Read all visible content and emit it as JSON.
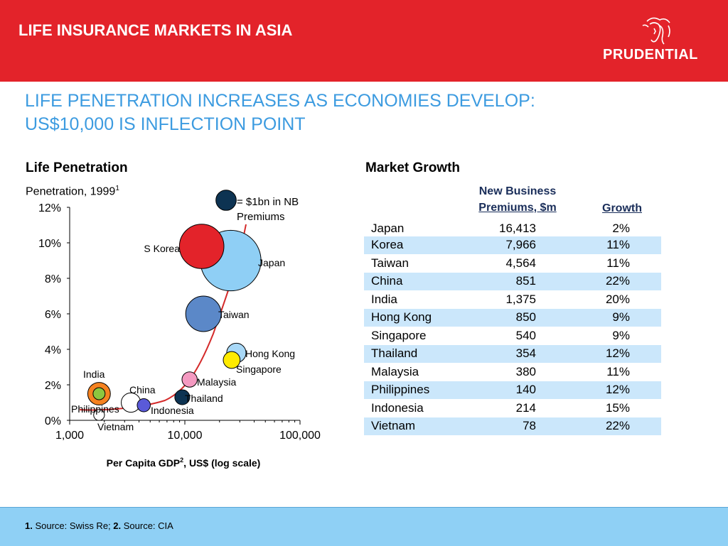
{
  "header": {
    "title": "LIFE INSURANCE MARKETS IN ASIA",
    "brand": "PRUDENTIAL",
    "brand_color": "#e3232a",
    "logo_icon": "prudence-head-icon"
  },
  "subtitle": {
    "line1": "LIFE PENETRATION INCREASES AS ECONOMIES DEVELOP:",
    "line2": "US$10,000 IS INFLECTION POINT"
  },
  "left_panel": {
    "title": "Life Penetration",
    "subtitle": "Penetration, 1999",
    "subtitle_sup": "1"
  },
  "right_panel": {
    "title": "Market Growth",
    "col_premiums_line1": "New Business",
    "col_premiums_line2": "Premiums, $m",
    "col_growth": "Growth"
  },
  "chart_data": {
    "type": "scatter",
    "subtype": "bubble",
    "x_scale": "log",
    "xlim": [
      1000,
      100000
    ],
    "ylim": [
      0,
      12
    ],
    "x_ticks": [
      "1,000",
      "10,000",
      "100,000"
    ],
    "y_ticks": [
      "0%",
      "2%",
      "4%",
      "6%",
      "8%",
      "10%",
      "12%"
    ],
    "xlabel_main": "Per Capita GDP",
    "xlabel_sup": "2",
    "xlabel_rest": ", US$ (log scale)",
    "legend": {
      "label_line1": "= $1bn in NB",
      "label_line2": "Premiums",
      "color": "#0d3352"
    },
    "trend_line_color": "#d42a2a",
    "points": [
      {
        "name": "Japan",
        "gdp": 25000,
        "penetration": 9.0,
        "size": 16.4,
        "color": "#8fcff5"
      },
      {
        "name": "S Korea",
        "gdp": 14000,
        "penetration": 9.8,
        "size": 8.0,
        "color": "#e3232a"
      },
      {
        "name": "Taiwan",
        "gdp": 14500,
        "penetration": 6.0,
        "size": 4.6,
        "color": "#5b88c8"
      },
      {
        "name": "Hong Kong",
        "gdp": 28000,
        "penetration": 3.8,
        "size": 0.85,
        "color": "#a8d8f7"
      },
      {
        "name": "Singapore",
        "gdp": 25500,
        "penetration": 3.4,
        "size": 0.54,
        "color": "#ffeb00"
      },
      {
        "name": "Malaysia",
        "gdp": 11000,
        "penetration": 2.3,
        "size": 0.38,
        "color": "#f49ac1"
      },
      {
        "name": "Thailand",
        "gdp": 9500,
        "penetration": 1.3,
        "size": 0.35,
        "color": "#0d3352"
      },
      {
        "name": "China",
        "gdp": 3400,
        "penetration": 1.0,
        "size": 0.85,
        "color": "#ffffff"
      },
      {
        "name": "Indonesia",
        "gdp": 4400,
        "penetration": 0.85,
        "size": 0.21,
        "color": "#5a5ad8"
      },
      {
        "name": "India",
        "gdp": 1800,
        "penetration": 1.5,
        "size": 1.38,
        "color": "#f58220"
      },
      {
        "name": "Philippines",
        "gdp": 1800,
        "penetration": 1.5,
        "size": 0.14,
        "color": "#8dc63f"
      },
      {
        "name": "Vietnam",
        "gdp": 1800,
        "penetration": 0.3,
        "size": 0.08,
        "color": "#ffffff"
      }
    ],
    "table": [
      {
        "country": "Japan",
        "premiums": "16,413",
        "growth": "2%"
      },
      {
        "country": "Korea",
        "premiums": "7,966",
        "growth": "11%"
      },
      {
        "country": "Taiwan",
        "premiums": "4,564",
        "growth": "11%"
      },
      {
        "country": "China",
        "premiums": "851",
        "growth": "22%"
      },
      {
        "country": "India",
        "premiums": "1,375",
        "growth": "20%"
      },
      {
        "country": "Hong Kong",
        "premiums": "850",
        "growth": "9%"
      },
      {
        "country": "Singapore",
        "premiums": "540",
        "growth": "9%"
      },
      {
        "country": "Thailand",
        "premiums": "354",
        "growth": "12%"
      },
      {
        "country": "Malaysia",
        "premiums": "380",
        "growth": "11%"
      },
      {
        "country": "Philippines",
        "premiums": "140",
        "growth": "12%"
      },
      {
        "country": "Indonesia",
        "premiums": "214",
        "growth": "15%"
      },
      {
        "country": "Vietnam",
        "premiums": "78",
        "growth": "22%"
      }
    ]
  },
  "footer": {
    "note1_num": "1.",
    "note1_text": " Source: Swiss Re; ",
    "note2_num": "2.",
    "note2_text": " Source: CIA"
  }
}
